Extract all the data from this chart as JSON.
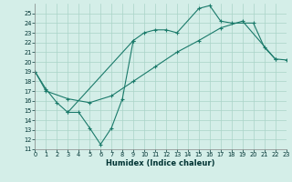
{
  "xlabel": "Humidex (Indice chaleur)",
  "bg_color": "#d4eee8",
  "grid_color": "#aad4c8",
  "line_color": "#1a7a6a",
  "ylim": [
    11,
    26
  ],
  "xlim": [
    0,
    23
  ],
  "yticks": [
    11,
    12,
    13,
    14,
    15,
    16,
    17,
    18,
    19,
    20,
    21,
    22,
    23,
    24,
    25
  ],
  "xticks": [
    0,
    1,
    2,
    3,
    4,
    5,
    6,
    7,
    8,
    9,
    10,
    11,
    12,
    13,
    14,
    15,
    16,
    17,
    18,
    19,
    20,
    21,
    22,
    23
  ],
  "line1_x": [
    0,
    1,
    2,
    3,
    9,
    10,
    11,
    12,
    13,
    15,
    16,
    17,
    18,
    20,
    21,
    22
  ],
  "line1_y": [
    19.0,
    17.2,
    15.8,
    14.8,
    22.2,
    23.0,
    23.3,
    23.3,
    23.0,
    25.5,
    25.8,
    24.2,
    24.0,
    24.0,
    21.5,
    20.3
  ],
  "line2_x": [
    3,
    4,
    5,
    6,
    7,
    8,
    9
  ],
  "line2_y": [
    14.8,
    14.8,
    13.2,
    11.5,
    13.2,
    16.2,
    22.2
  ],
  "line3_x": [
    0,
    1,
    3,
    5,
    7,
    9,
    11,
    13,
    15,
    17,
    19,
    22,
    23
  ],
  "line3_y": [
    19.0,
    17.0,
    16.2,
    15.8,
    16.5,
    18.0,
    19.5,
    21.0,
    22.2,
    23.5,
    24.2,
    20.3,
    20.2
  ]
}
